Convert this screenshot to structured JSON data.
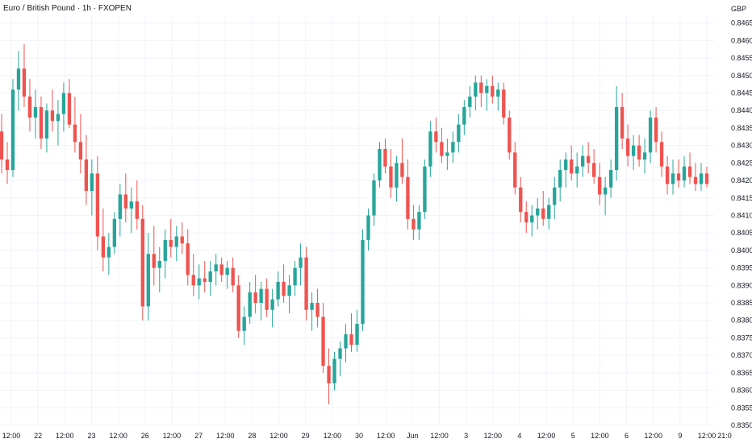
{
  "chart_data": {
    "type": "candlestick",
    "title": "Euro / British Pound · 1h · FXOPEN",
    "currency_label": "GBP",
    "colors": {
      "up": "#26a69a",
      "down": "#ef5350",
      "grid": "#f0f3fa",
      "text": "#131722"
    },
    "ylim": [
      0.8353,
      0.8469
    ],
    "y_ticks": [
      "0.84650",
      "0.84600",
      "0.84550",
      "0.84500",
      "0.84450",
      "0.84400",
      "0.84350",
      "0.84300",
      "0.84250",
      "0.84200",
      "0.84150",
      "0.84100",
      "0.84050",
      "0.84000",
      "0.83950",
      "0.83900",
      "0.83850",
      "0.83800",
      "0.83750",
      "0.83700",
      "0.83650",
      "0.83600",
      "0.83550",
      "0.83500"
    ],
    "x_tick_labels": [
      "12:00",
      "22",
      "12:00",
      "23",
      "12:00",
      "26",
      "12:00",
      "27",
      "12:00",
      "28",
      "12:00",
      "29",
      "12:00",
      "30",
      "12:00",
      "Jun",
      "12:00",
      "3",
      "12:00",
      "4",
      "12:00",
      "5",
      "12:00",
      "6",
      "12:00",
      "9",
      "12:00",
      "21:0"
    ],
    "candles": [
      [
        0.8434,
        0.8439,
        0.8422,
        0.8426
      ],
      [
        0.8426,
        0.8431,
        0.8419,
        0.8423
      ],
      [
        0.8423,
        0.8449,
        0.8421,
        0.8446
      ],
      [
        0.8446,
        0.8457,
        0.844,
        0.8452
      ],
      [
        0.8452,
        0.8459,
        0.8441,
        0.8444
      ],
      [
        0.8444,
        0.8449,
        0.8434,
        0.8438
      ],
      [
        0.8438,
        0.8446,
        0.8432,
        0.8441
      ],
      [
        0.8441,
        0.8444,
        0.8429,
        0.8432
      ],
      [
        0.8432,
        0.8442,
        0.8428,
        0.844
      ],
      [
        0.844,
        0.8446,
        0.8434,
        0.8437
      ],
      [
        0.8437,
        0.8443,
        0.843,
        0.8439
      ],
      [
        0.8439,
        0.8448,
        0.8434,
        0.8445
      ],
      [
        0.8445,
        0.8449,
        0.8435,
        0.8436
      ],
      [
        0.8436,
        0.8444,
        0.8428,
        0.8431
      ],
      [
        0.8431,
        0.8439,
        0.8422,
        0.8426
      ],
      [
        0.8426,
        0.8433,
        0.8413,
        0.8417
      ],
      [
        0.8417,
        0.8426,
        0.841,
        0.8422
      ],
      [
        0.8422,
        0.8427,
        0.84,
        0.8404
      ],
      [
        0.8404,
        0.8412,
        0.8394,
        0.8398
      ],
      [
        0.8398,
        0.8405,
        0.8393,
        0.8401
      ],
      [
        0.8401,
        0.8411,
        0.8399,
        0.8409
      ],
      [
        0.8409,
        0.8419,
        0.8404,
        0.8416
      ],
      [
        0.8416,
        0.8422,
        0.8408,
        0.8412
      ],
      [
        0.8412,
        0.8418,
        0.8405,
        0.8414
      ],
      [
        0.8414,
        0.842,
        0.8406,
        0.8409
      ],
      [
        0.8409,
        0.8413,
        0.838,
        0.8384
      ],
      [
        0.8384,
        0.8405,
        0.838,
        0.8399
      ],
      [
        0.8399,
        0.8407,
        0.839,
        0.8395
      ],
      [
        0.8395,
        0.8401,
        0.8388,
        0.8397
      ],
      [
        0.8397,
        0.8406,
        0.8392,
        0.8403
      ],
      [
        0.8403,
        0.8409,
        0.8398,
        0.8401
      ],
      [
        0.8401,
        0.8407,
        0.8397,
        0.8404
      ],
      [
        0.8404,
        0.8408,
        0.8399,
        0.8402
      ],
      [
        0.8402,
        0.8406,
        0.839,
        0.8393
      ],
      [
        0.8393,
        0.8399,
        0.8387,
        0.839
      ],
      [
        0.839,
        0.8396,
        0.8386,
        0.8392
      ],
      [
        0.8392,
        0.8397,
        0.8388,
        0.8391
      ],
      [
        0.8391,
        0.8397,
        0.8387,
        0.8394
      ],
      [
        0.8394,
        0.8399,
        0.839,
        0.8396
      ],
      [
        0.8396,
        0.8398,
        0.8391,
        0.8393
      ],
      [
        0.8393,
        0.8397,
        0.8389,
        0.8395
      ],
      [
        0.8395,
        0.8398,
        0.8388,
        0.839
      ],
      [
        0.839,
        0.8393,
        0.8375,
        0.8377
      ],
      [
        0.8377,
        0.8384,
        0.8373,
        0.8381
      ],
      [
        0.8381,
        0.8391,
        0.8379,
        0.8388
      ],
      [
        0.8388,
        0.8393,
        0.8382,
        0.8385
      ],
      [
        0.8385,
        0.8391,
        0.838,
        0.8389
      ],
      [
        0.8389,
        0.8392,
        0.8381,
        0.8383
      ],
      [
        0.8383,
        0.8389,
        0.8378,
        0.8386
      ],
      [
        0.8386,
        0.8394,
        0.8384,
        0.8391
      ],
      [
        0.8391,
        0.8396,
        0.8385,
        0.8387
      ],
      [
        0.8387,
        0.8393,
        0.8382,
        0.839
      ],
      [
        0.839,
        0.8397,
        0.8387,
        0.8395
      ],
      [
        0.8395,
        0.8402,
        0.839,
        0.8398
      ],
      [
        0.8398,
        0.8401,
        0.838,
        0.8383
      ],
      [
        0.8383,
        0.8388,
        0.8377,
        0.8385
      ],
      [
        0.8385,
        0.8389,
        0.8378,
        0.8381
      ],
      [
        0.8381,
        0.8385,
        0.8365,
        0.8367
      ],
      [
        0.8367,
        0.8372,
        0.8356,
        0.8362
      ],
      [
        0.8362,
        0.8371,
        0.836,
        0.8369
      ],
      [
        0.8369,
        0.8374,
        0.8364,
        0.8372
      ],
      [
        0.8372,
        0.8379,
        0.8368,
        0.8376
      ],
      [
        0.8376,
        0.8382,
        0.8371,
        0.8373
      ],
      [
        0.8373,
        0.8383,
        0.8371,
        0.8379
      ],
      [
        0.8379,
        0.8406,
        0.8377,
        0.8403
      ],
      [
        0.8403,
        0.8412,
        0.84,
        0.841
      ],
      [
        0.841,
        0.8422,
        0.8407,
        0.842
      ],
      [
        0.842,
        0.8431,
        0.8418,
        0.8429
      ],
      [
        0.8429,
        0.8432,
        0.8422,
        0.8424
      ],
      [
        0.8424,
        0.8429,
        0.8415,
        0.8418
      ],
      [
        0.8418,
        0.8427,
        0.8414,
        0.8425
      ],
      [
        0.8425,
        0.8432,
        0.8419,
        0.8421
      ],
      [
        0.8421,
        0.8426,
        0.8406,
        0.8409
      ],
      [
        0.8409,
        0.8413,
        0.8403,
        0.8406
      ],
      [
        0.8406,
        0.8413,
        0.8403,
        0.8411
      ],
      [
        0.8411,
        0.8426,
        0.8409,
        0.8424
      ],
      [
        0.8424,
        0.8437,
        0.8421,
        0.8434
      ],
      [
        0.8434,
        0.8438,
        0.8428,
        0.8431
      ],
      [
        0.8431,
        0.8435,
        0.8425,
        0.8427
      ],
      [
        0.8427,
        0.8432,
        0.8423,
        0.8428
      ],
      [
        0.8428,
        0.8434,
        0.8425,
        0.8431
      ],
      [
        0.8431,
        0.8439,
        0.8428,
        0.8436
      ],
      [
        0.8436,
        0.8443,
        0.8433,
        0.8441
      ],
      [
        0.8441,
        0.8447,
        0.8438,
        0.8444
      ],
      [
        0.8444,
        0.845,
        0.844,
        0.8448
      ],
      [
        0.8448,
        0.845,
        0.8441,
        0.8445
      ],
      [
        0.8445,
        0.8449,
        0.844,
        0.8447
      ],
      [
        0.8447,
        0.845,
        0.8442,
        0.8444
      ],
      [
        0.8444,
        0.8448,
        0.844,
        0.8446
      ],
      [
        0.8446,
        0.8448,
        0.8436,
        0.8438
      ],
      [
        0.8438,
        0.844,
        0.8426,
        0.8428
      ],
      [
        0.8428,
        0.8431,
        0.8416,
        0.8418
      ],
      [
        0.8418,
        0.8421,
        0.8408,
        0.8411
      ],
      [
        0.8411,
        0.8414,
        0.8405,
        0.8408
      ],
      [
        0.8408,
        0.8413,
        0.8404,
        0.841
      ],
      [
        0.841,
        0.8415,
        0.8406,
        0.8412
      ],
      [
        0.8412,
        0.8417,
        0.8407,
        0.8409
      ],
      [
        0.8409,
        0.8415,
        0.8406,
        0.8413
      ],
      [
        0.8413,
        0.8421,
        0.8409,
        0.8418
      ],
      [
        0.8418,
        0.8426,
        0.8414,
        0.8423
      ],
      [
        0.8423,
        0.8428,
        0.8418,
        0.8426
      ],
      [
        0.8426,
        0.843,
        0.842,
        0.8422
      ],
      [
        0.8422,
        0.8428,
        0.8418,
        0.8424
      ],
      [
        0.8424,
        0.843,
        0.8421,
        0.8427
      ],
      [
        0.8427,
        0.8431,
        0.8422,
        0.8425
      ],
      [
        0.8425,
        0.8429,
        0.8419,
        0.8421
      ],
      [
        0.8421,
        0.8425,
        0.8413,
        0.8416
      ],
      [
        0.8416,
        0.8421,
        0.841,
        0.8418
      ],
      [
        0.8418,
        0.8426,
        0.8415,
        0.8423
      ],
      [
        0.8423,
        0.8447,
        0.842,
        0.8441
      ],
      [
        0.8441,
        0.8445,
        0.8429,
        0.8432
      ],
      [
        0.8432,
        0.8436,
        0.8424,
        0.8427
      ],
      [
        0.8427,
        0.8433,
        0.8423,
        0.843
      ],
      [
        0.843,
        0.8433,
        0.8424,
        0.8426
      ],
      [
        0.8426,
        0.8432,
        0.8422,
        0.8428
      ],
      [
        0.8428,
        0.844,
        0.8425,
        0.8438
      ],
      [
        0.8438,
        0.8441,
        0.8428,
        0.8431
      ],
      [
        0.8431,
        0.8434,
        0.8421,
        0.8424
      ],
      [
        0.8424,
        0.8427,
        0.8416,
        0.8419
      ],
      [
        0.8419,
        0.8426,
        0.8416,
        0.8422
      ],
      [
        0.8422,
        0.8426,
        0.8418,
        0.842
      ],
      [
        0.842,
        0.8427,
        0.8418,
        0.8424
      ],
      [
        0.8424,
        0.8428,
        0.8419,
        0.8421
      ],
      [
        0.8421,
        0.8425,
        0.8417,
        0.8419
      ],
      [
        0.8419,
        0.8425,
        0.8417,
        0.8422
      ],
      [
        0.8422,
        0.8424,
        0.8418,
        0.8419
      ]
    ]
  }
}
